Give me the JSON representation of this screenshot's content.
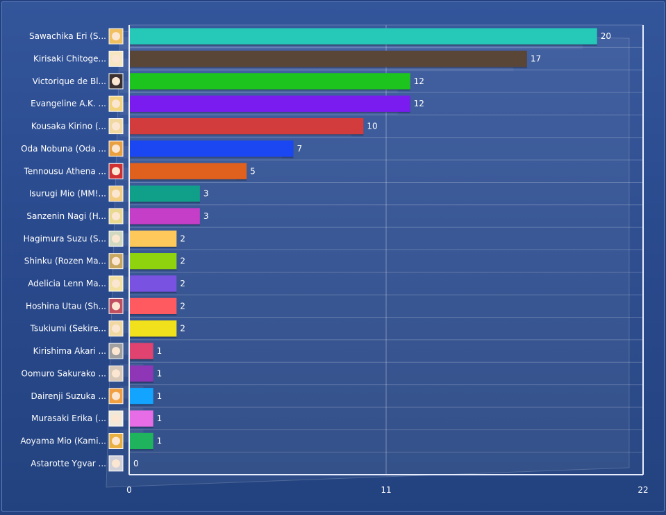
{
  "chart_data": {
    "type": "bar",
    "orientation": "horizontal",
    "categories": [
      "Sawachika Eri (S...",
      "Kirisaki Chitoge...",
      "Victorique de Bl...",
      "Evangeline A.K. ...",
      "Kousaka Kirino (...",
      "Oda Nobuna (Oda ...",
      "Tennousu Athena ...",
      "Isurugi Mio (MM!...",
      "Sanzenin Nagi (H...",
      "Hagimura Suzu (S...",
      "Shinku (Rozen Ma...",
      "Adelicia Lenn Ma...",
      "Hoshina Utau (Sh...",
      "Tsukiumi (Sekire...",
      "Kirishima Akari ...",
      "Oomuro Sakurako ...",
      "Dairenji Suzuka ...",
      "Murasaki Erika (...",
      "Aoyama Mio (Kami...",
      "Astarotte Ygvar ..."
    ],
    "values": [
      20,
      17,
      12,
      12,
      10,
      7,
      5,
      3,
      3,
      2,
      2,
      2,
      2,
      2,
      1,
      1,
      1,
      1,
      1,
      0
    ],
    "colors": [
      "#26c9b8",
      "#5a4636",
      "#1dc41d",
      "#7a1cf0",
      "#d23c3c",
      "#1a47f2",
      "#e0601e",
      "#10a08a",
      "#c43ec7",
      "#ffc85a",
      "#8fd30f",
      "#7a52e2",
      "#ff5a5f",
      "#f1e01c",
      "#e0436f",
      "#8e36b5",
      "#12a4ff",
      "#e66de5",
      "#20b35e",
      "#e0e0e0"
    ],
    "avatar_colors": [
      "#f0c060",
      "#f6e7c0",
      "#3a3030",
      "#f2d27a",
      "#f0d8a0",
      "#e8a040",
      "#d03030",
      "#f2cc80",
      "#e9d890",
      "#d0d8c0",
      "#c8a860",
      "#f2e0a0",
      "#c05060",
      "#f0d8a0",
      "#a0a0a0",
      "#d8c8b8",
      "#f0a040",
      "#f0e8d8",
      "#e8b040",
      "#d0d0d8"
    ],
    "xlim": [
      0,
      22
    ],
    "xticks": [
      "0",
      "11",
      "22"
    ],
    "grid": true,
    "legend": "none"
  }
}
